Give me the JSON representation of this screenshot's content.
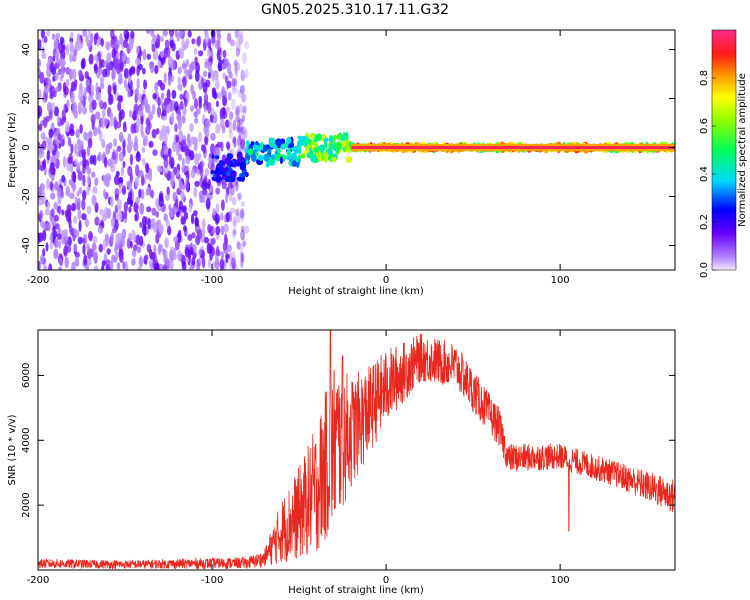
{
  "title": "GN05.2025.310.17.11.G32",
  "chart_data": [
    {
      "type": "heatmap",
      "title": "GN05.2025.310.17.11.G32",
      "xlabel": "Height of straight line (km)",
      "ylabel": "Frequency (Hz)",
      "xlim": [
        -200,
        166
      ],
      "ylim": [
        -50,
        48
      ],
      "xticks": [
        -200,
        -100,
        0,
        100
      ],
      "xtick_labels": [
        "-200",
        "-100",
        "0",
        "100"
      ],
      "yticks": [
        -40,
        -20,
        0,
        20,
        40
      ],
      "ytick_labels": [
        "-40",
        "-20",
        "0",
        "20",
        "40"
      ],
      "colorbar": {
        "label": "Normalized spectral amplitude",
        "range": [
          0,
          1
        ],
        "ticks": [
          0.0,
          0.2,
          0.4,
          0.6,
          0.8
        ],
        "tick_labels": [
          "0.0",
          "0.2",
          "0.4",
          "0.6",
          "0.8"
        ],
        "colormap": "rainbow (magenta-blue-cyan-green-yellow-red-pink)"
      },
      "regions": [
        {
          "x_range": [
            -200,
            -80
          ],
          "freq_range": [
            -50,
            48
          ],
          "description_amplitude": 0.15,
          "note": "broadband noise"
        },
        {
          "x_range": [
            -100,
            -80
          ],
          "freq_center": -8,
          "amplitude": 0.3
        },
        {
          "x_range": [
            -80,
            -50
          ],
          "freq_center": -2,
          "amplitude": 0.5
        },
        {
          "x_range": [
            -50,
            -20
          ],
          "freq_center": 0,
          "amplitude": 0.7
        },
        {
          "x_range": [
            -20,
            166
          ],
          "freq_center": 0,
          "amplitude": 0.95
        }
      ],
      "grid": false
    },
    {
      "type": "line",
      "xlabel": "Height of straight line (km)",
      "ylabel": "SNR (10 * v/v)",
      "xlim": [
        -200,
        166
      ],
      "ylim": [
        0,
        7400
      ],
      "xticks": [
        -200,
        -100,
        0,
        100
      ],
      "xtick_labels": [
        "-200",
        "-100",
        "0",
        "100"
      ],
      "yticks": [
        2000,
        4000,
        6000
      ],
      "ytick_labels": [
        "2000",
        "4000",
        "6000"
      ],
      "series_color": "#e8281e",
      "envelope": [
        {
          "x": -200,
          "low": 50,
          "high": 350
        },
        {
          "x": -150,
          "low": 40,
          "high": 300
        },
        {
          "x": -80,
          "low": 40,
          "high": 400
        },
        {
          "x": -70,
          "low": 100,
          "high": 600
        },
        {
          "x": -60,
          "low": 200,
          "high": 2200
        },
        {
          "x": -50,
          "low": 300,
          "high": 3200
        },
        {
          "x": -40,
          "low": 500,
          "high": 4500
        },
        {
          "x": -30,
          "low": 1200,
          "high": 6500
        },
        {
          "x": -20,
          "low": 2500,
          "high": 6000
        },
        {
          "x": -10,
          "low": 3500,
          "high": 6300
        },
        {
          "x": 0,
          "low": 4500,
          "high": 6800
        },
        {
          "x": 20,
          "low": 5800,
          "high": 7300
        },
        {
          "x": 40,
          "low": 5600,
          "high": 7000
        },
        {
          "x": 55,
          "low": 4500,
          "high": 5800
        },
        {
          "x": 65,
          "low": 3800,
          "high": 5000
        },
        {
          "x": 70,
          "low": 3000,
          "high": 3900
        },
        {
          "x": 100,
          "low": 3100,
          "high": 3900
        },
        {
          "x": 130,
          "low": 2600,
          "high": 3400
        },
        {
          "x": 166,
          "low": 1700,
          "high": 2800
        }
      ],
      "spikes": [
        {
          "x": -32,
          "y": 7400
        },
        {
          "x": -25,
          "y": 6600
        },
        {
          "x": 105,
          "y": 1200
        }
      ]
    }
  ]
}
